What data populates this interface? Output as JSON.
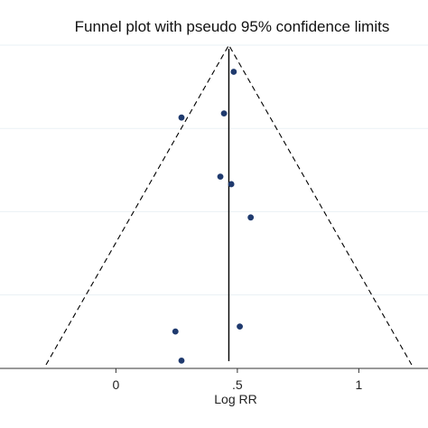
{
  "chart_data": {
    "type": "scatter",
    "title": "Funnel plot with pseudo 95% confidence limits",
    "xlabel": "Log RR",
    "ylabel": "",
    "x_ticks": [
      {
        "value": 0,
        "label": "0"
      },
      {
        "value": 0.5,
        "label": ".5"
      },
      {
        "value": 1,
        "label": "1"
      }
    ],
    "xlim": [
      -0.44,
      1.27
    ],
    "ylim": [
      0,
      0.384
    ],
    "y_reversed": true,
    "y_ticks_unlabeled": [
      0,
      0.1,
      0.2,
      0.3,
      0.4
    ],
    "pooled_estimate": 0.465,
    "funnel_limits": "pseudo 95% confidence limits",
    "points": [
      {
        "x": 0.485,
        "y": 0.032
      },
      {
        "x": 0.27,
        "y": 0.087
      },
      {
        "x": 0.445,
        "y": 0.082
      },
      {
        "x": 0.43,
        "y": 0.158
      },
      {
        "x": 0.475,
        "y": 0.167
      },
      {
        "x": 0.555,
        "y": 0.207
      },
      {
        "x": 0.245,
        "y": 0.344
      },
      {
        "x": 0.51,
        "y": 0.338
      },
      {
        "x": 0.27,
        "y": 0.379
      }
    ],
    "colors": {
      "point": "#1f3a6e",
      "line": "#000000",
      "gridline": "#eaf1f5",
      "plot_background": "#ffffff"
    }
  }
}
